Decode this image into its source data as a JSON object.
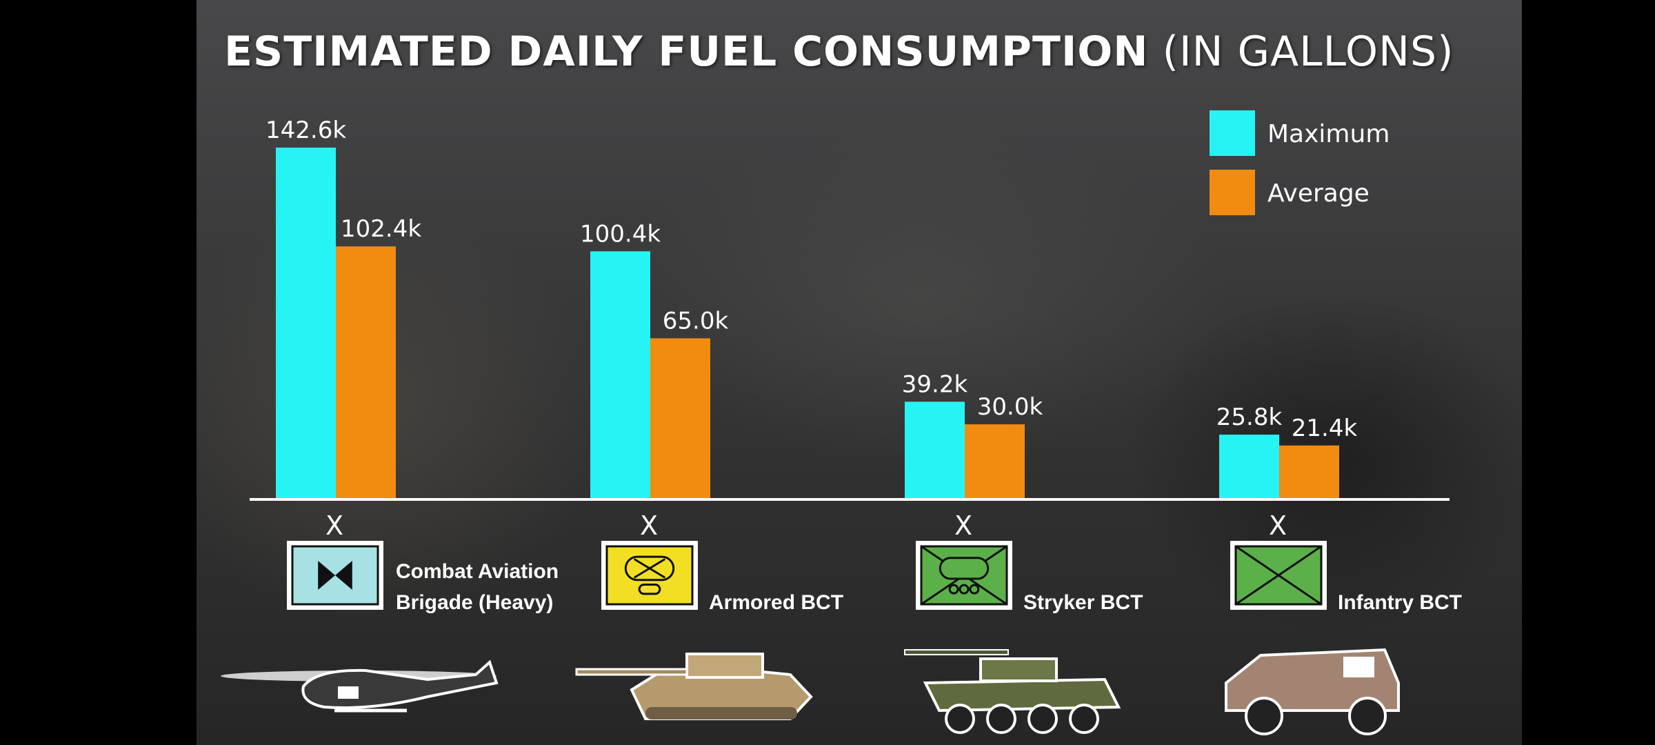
{
  "title": {
    "main": "ESTIMATED DAILY FUEL CONSUMPTION",
    "sub": "(IN GALLONS)"
  },
  "colors": {
    "maximum": "#26f4f4",
    "average": "#f18c10",
    "axis": "#ffffff"
  },
  "chart_data": {
    "type": "bar",
    "categories": [
      "Combat Aviation Brigade (Heavy)",
      "Armored BCT",
      "Stryker BCT",
      "Infantry BCT"
    ],
    "series": [
      {
        "name": "Maximum",
        "values": [
          142.6,
          100.4,
          39.2,
          25.8
        ],
        "labels": [
          "142.6k",
          "100.4k",
          "39.2k",
          "25.8k"
        ]
      },
      {
        "name": "Average",
        "values": [
          102.4,
          65.0,
          30.0,
          21.4
        ],
        "labels": [
          "102.4k",
          "65.0k",
          "30.0k",
          "21.4k"
        ]
      }
    ],
    "units": "thousands of gallons",
    "ylim": [
      0,
      142.6
    ],
    "legend": "top-right",
    "grid": false
  },
  "categories_display": [
    {
      "lines": [
        "Combat Aviation",
        "Brigade (Heavy)"
      ],
      "symbol": "aviation-symbol",
      "symbol_color": "#a7e1e4",
      "vehicle": "helicopter-icon",
      "echelon": "X"
    },
    {
      "lines": [
        "Armored BCT"
      ],
      "symbol": "armor-symbol",
      "symbol_color": "#f2df24",
      "vehicle": "tank-icon",
      "echelon": "X"
    },
    {
      "lines": [
        "Stryker BCT"
      ],
      "symbol": "stryker-symbol",
      "symbol_color": "#5cb04a",
      "vehicle": "stryker-vehicle-icon",
      "echelon": "X"
    },
    {
      "lines": [
        "Infantry BCT"
      ],
      "symbol": "infantry-symbol",
      "symbol_color": "#5cb04a",
      "vehicle": "jltv-icon",
      "echelon": "X"
    }
  ]
}
